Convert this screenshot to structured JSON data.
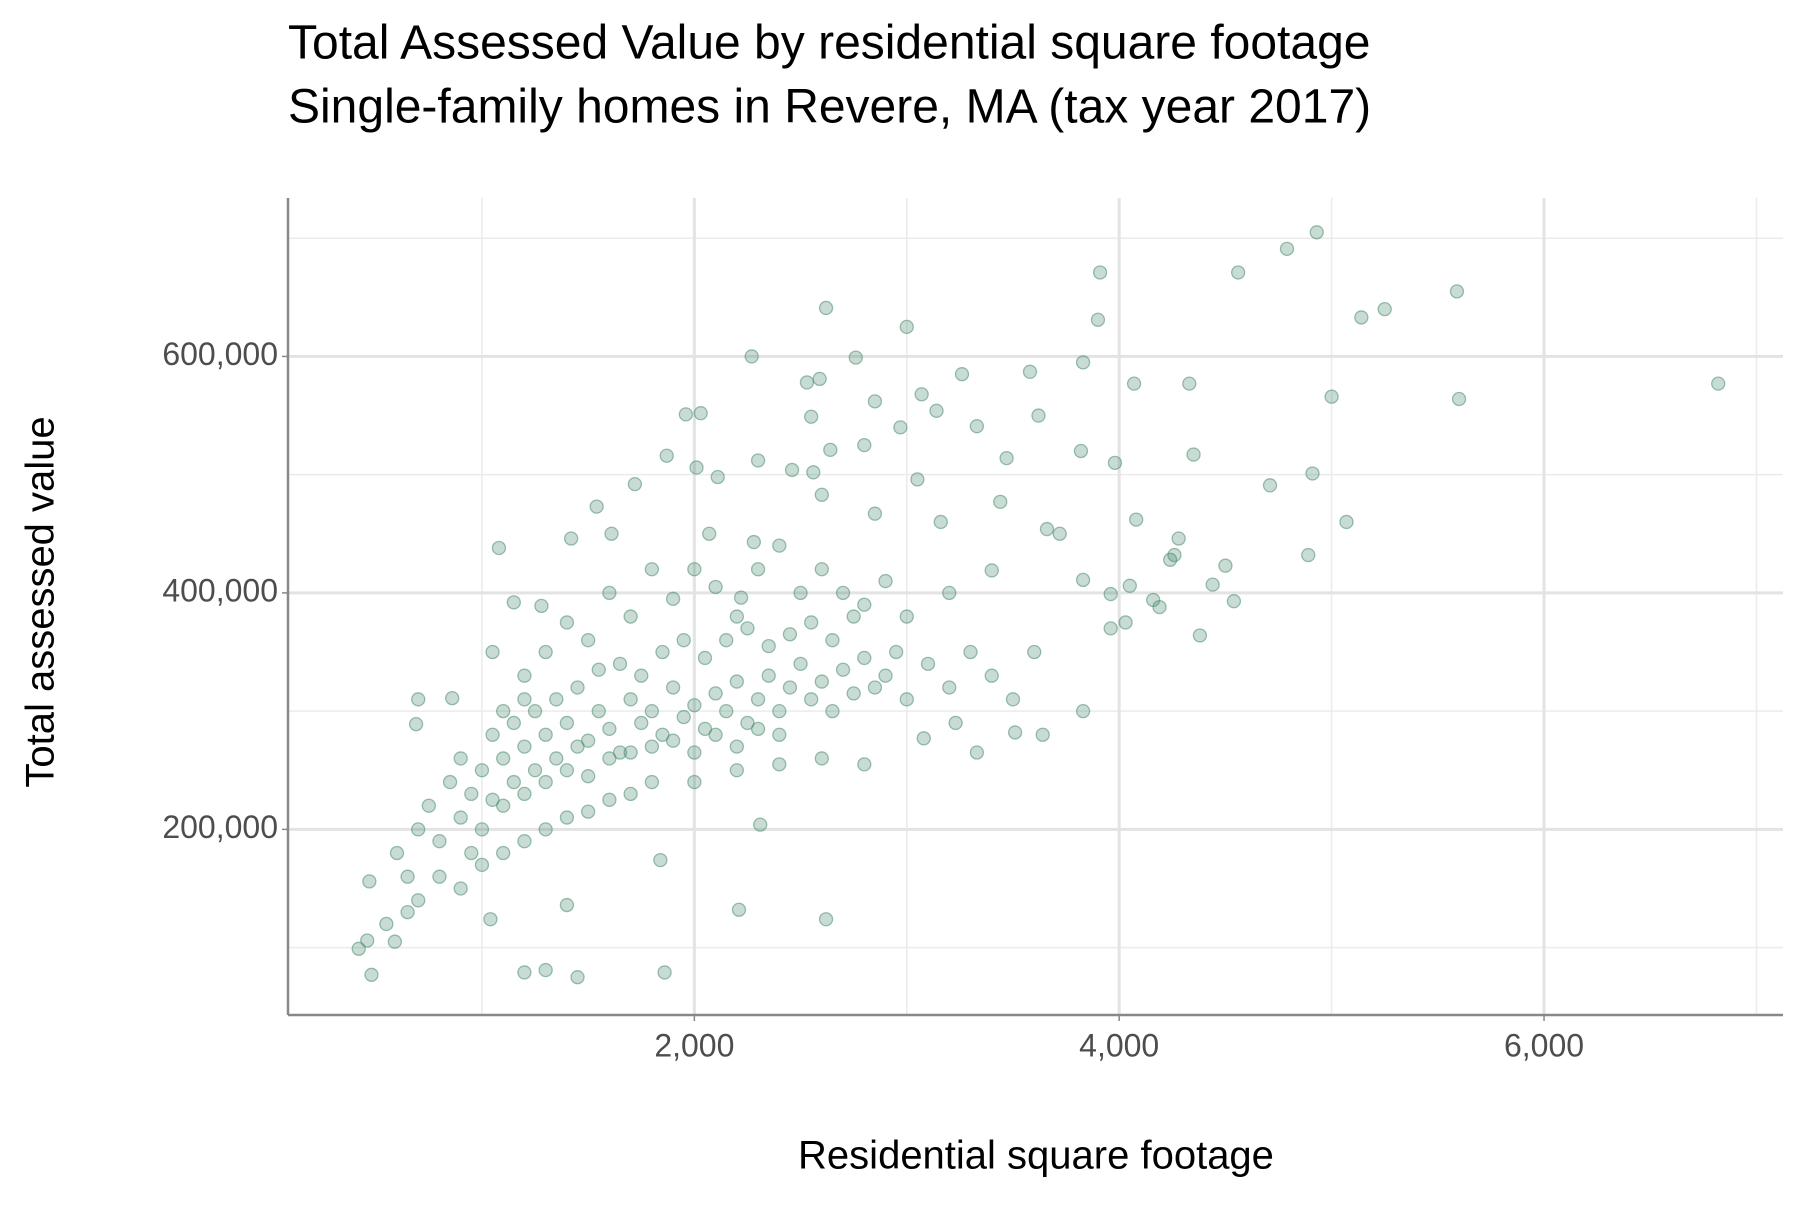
{
  "chart_data": {
    "type": "scatter",
    "title": "Total Assessed Value by residential square footage",
    "subtitle": "Single-family homes in Revere, MA (tax year 2017)",
    "x_label": "Residential square footage",
    "y_label": "Total assessed value",
    "color": "#4a8c72",
    "grid": true,
    "xlim": [
      87,
      7125
    ],
    "ylim": [
      43000,
      734000
    ],
    "xticks": [
      {
        "value": 2000,
        "label": "2,000"
      },
      {
        "value": 4000,
        "label": "4,000"
      },
      {
        "value": 6000,
        "label": "6,000"
      }
    ],
    "yticks": [
      {
        "value": 200000,
        "label": "200,000"
      },
      {
        "value": 400000,
        "label": "400,000"
      },
      {
        "value": 600000,
        "label": "600,000"
      }
    ],
    "xminor": [
      1000,
      3000,
      5000,
      7000
    ],
    "yminor": [
      100000,
      300000,
      500000,
      700000
    ],
    "x": [
      4930,
      4790,
      4560,
      3910,
      5590,
      5250,
      5140,
      2620,
      3900,
      3000,
      2270,
      2760,
      6820,
      3580,
      3830,
      4070,
      4330,
      2530,
      2590,
      3260,
      5000,
      5600,
      3070,
      2850,
      3140,
      3620,
      1960,
      2030,
      2550,
      3330,
      2970,
      2640,
      2800,
      1870,
      3470,
      3820,
      4350,
      3980,
      4910,
      2010,
      2300,
      2460,
      2560,
      2110,
      3050,
      1720,
      4710,
      2600,
      1540,
      3440,
      2850,
      4080,
      5070,
      3160,
      3660,
      3720,
      4280,
      1080,
      1420,
      1610,
      2070,
      2280,
      4500,
      4260,
      4890,
      3400,
      4240,
      4440,
      4540,
      3830,
      4050,
      4160,
      3960,
      4380,
      4030,
      3960,
      4190,
      3330,
      3510,
      3640,
      3830,
      3080,
      3230,
      1150,
      1280,
      1050,
      2220,
      2310,
      2620,
      2210,
      1860,
      1450,
      1300,
      1200,
      480,
      420,
      460,
      470,
      700,
      690,
      860,
      1840,
      1400,
      1040,
      590,
      600,
      650,
      700,
      750,
      800,
      850,
      900,
      950,
      1000,
      1050,
      1100,
      1150,
      1200,
      1250,
      1300,
      1350,
      1400,
      1450,
      1500,
      1550,
      1600,
      1650,
      1700,
      1750,
      1800,
      1850,
      1900,
      1950,
      2000,
      2050,
      2100,
      2150,
      2200,
      2250,
      2300,
      2350,
      2400,
      2450,
      2500,
      2550,
      2600,
      2650,
      2700,
      2750,
      2800,
      2850,
      2900,
      2950,
      3000,
      1000,
      1100,
      1200,
      1300,
      1400,
      1500,
      1600,
      1700,
      1800,
      1900,
      2000,
      2100,
      2200,
      2300,
      2400,
      1050,
      1150,
      1250,
      1350,
      1450,
      1550,
      1650,
      1750,
      1850,
      1950,
      2050,
      2150,
      2250,
      2350,
      2450,
      2550,
      2650,
      2750,
      900,
      950,
      800,
      700,
      650,
      550,
      900,
      1000,
      1100,
      1200,
      1300,
      1400,
      1500,
      1600,
      1700,
      1800,
      2000,
      2200,
      2400,
      2600,
      2800,
      3100,
      3200,
      3300,
      3400,
      3500,
      3600,
      1200,
      1300,
      1400,
      1500,
      1600,
      1700,
      1800,
      1900,
      2000,
      2100,
      2200,
      2300,
      2400,
      2500,
      2600,
      2700,
      2800,
      2900,
      3000,
      3200,
      1100,
      1200
    ],
    "values": [
      705000,
      691000,
      671000,
      671000,
      655000,
      640000,
      633000,
      641000,
      631000,
      625000,
      600000,
      599000,
      577000,
      587000,
      595000,
      577000,
      577000,
      578000,
      581000,
      585000,
      566000,
      564000,
      568000,
      562000,
      554000,
      550000,
      551000,
      552000,
      549000,
      541000,
      540000,
      521000,
      525000,
      516000,
      514000,
      520000,
      517000,
      510000,
      501000,
      506000,
      512000,
      504000,
      502000,
      498000,
      496000,
      492000,
      491000,
      483000,
      473000,
      477000,
      467000,
      462000,
      460000,
      460000,
      454000,
      450000,
      446000,
      438000,
      446000,
      450000,
      450000,
      443000,
      423000,
      432000,
      432000,
      419000,
      428000,
      407000,
      393000,
      411000,
      406000,
      394000,
      399000,
      364000,
      375000,
      370000,
      388000,
      265000,
      282000,
      280000,
      300000,
      277000,
      290000,
      392000,
      389000,
      350000,
      396000,
      204000,
      124000,
      132000,
      79000,
      75000,
      81000,
      79000,
      77000,
      99000,
      106000,
      156000,
      310000,
      289000,
      311000,
      174000,
      136000,
      124000,
      105000,
      180000,
      160000,
      200000,
      220000,
      190000,
      240000,
      210000,
      230000,
      250000,
      225000,
      260000,
      240000,
      270000,
      250000,
      280000,
      260000,
      290000,
      270000,
      275000,
      300000,
      285000,
      265000,
      310000,
      290000,
      300000,
      280000,
      320000,
      295000,
      305000,
      285000,
      315000,
      300000,
      325000,
      290000,
      310000,
      330000,
      300000,
      320000,
      340000,
      310000,
      325000,
      300000,
      335000,
      315000,
      345000,
      320000,
      330000,
      350000,
      310000,
      200000,
      220000,
      230000,
      240000,
      250000,
      245000,
      260000,
      265000,
      270000,
      275000,
      265000,
      280000,
      270000,
      285000,
      280000,
      280000,
      290000,
      300000,
      310000,
      320000,
      335000,
      340000,
      330000,
      350000,
      360000,
      345000,
      360000,
      370000,
      355000,
      365000,
      375000,
      360000,
      380000,
      260000,
      180000,
      160000,
      140000,
      130000,
      120000,
      150000,
      170000,
      180000,
      190000,
      200000,
      210000,
      215000,
      225000,
      230000,
      240000,
      240000,
      250000,
      255000,
      260000,
      255000,
      340000,
      320000,
      350000,
      330000,
      310000,
      350000,
      330000,
      350000,
      375000,
      360000,
      400000,
      380000,
      420000,
      395000,
      420000,
      405000,
      380000,
      420000,
      440000,
      400000,
      420000,
      400000,
      390000,
      410000,
      380000,
      400000,
      300000,
      310000
    ]
  }
}
